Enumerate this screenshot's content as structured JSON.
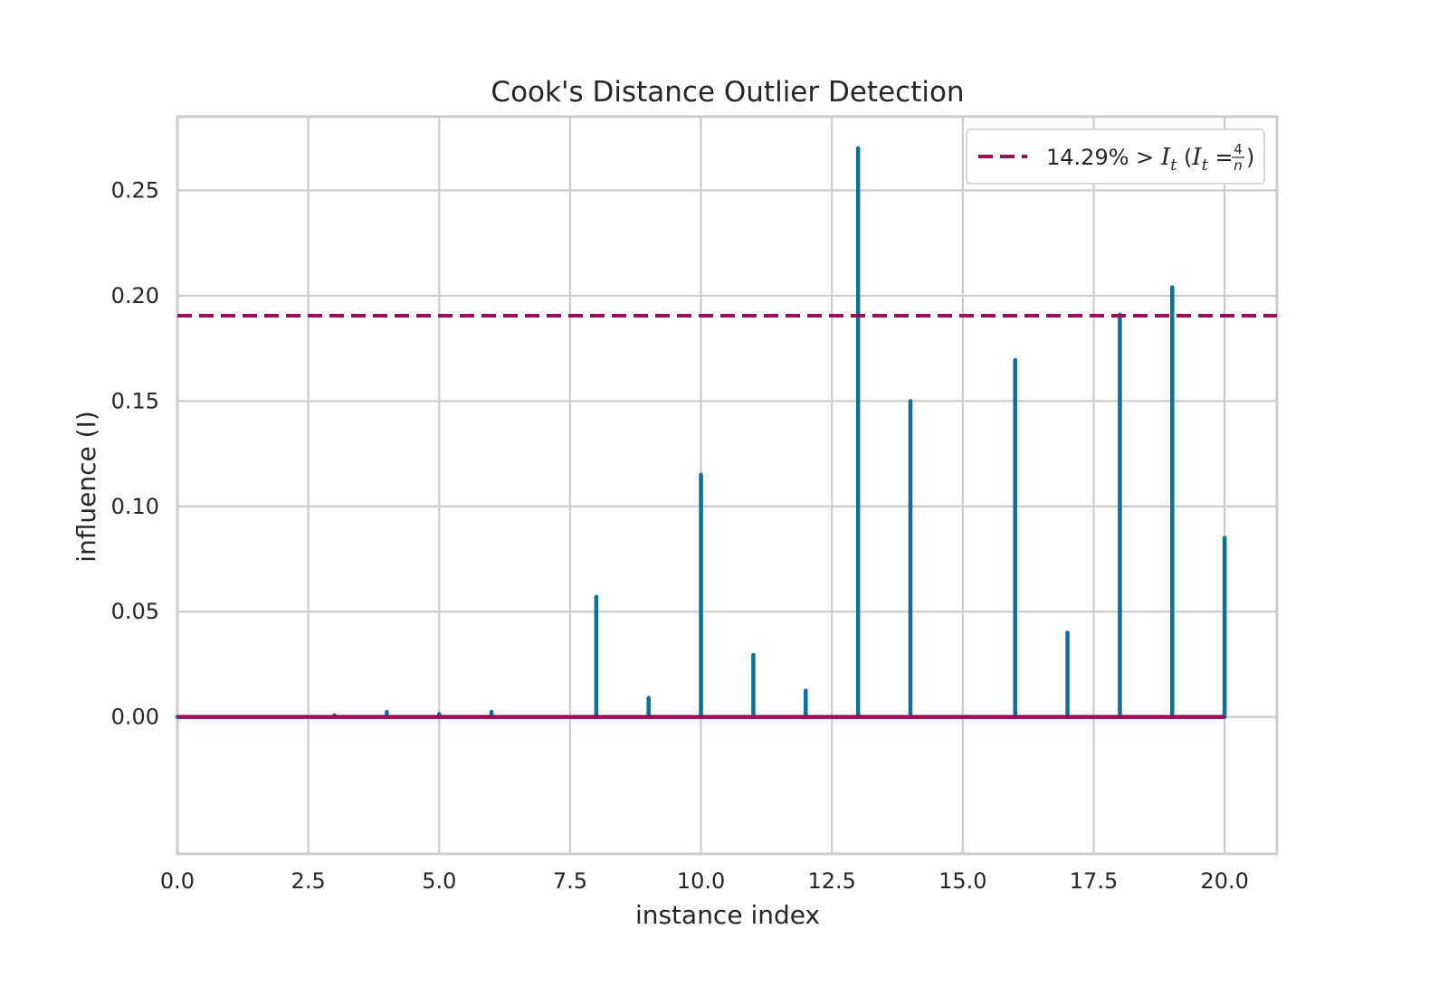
{
  "chart_data": {
    "type": "bar",
    "title": "Cook's Distance Outlier Detection",
    "xlabel": "instance index",
    "ylabel": "influence (I)",
    "xlim": [
      0,
      21
    ],
    "ylim": [
      -0.065,
      0.285
    ],
    "xticks": [
      0,
      2.5,
      5,
      7.5,
      10,
      12.5,
      15,
      17.5,
      20
    ],
    "xtick_labels": [
      "0.0",
      "2.5",
      "5.0",
      "7.5",
      "10.0",
      "12.5",
      "15.0",
      "17.5",
      "20.0"
    ],
    "yticks": [
      0,
      0.05,
      0.1,
      0.15,
      0.2,
      0.25
    ],
    "ytick_labels": [
      "0.00",
      "0.05",
      "0.10",
      "0.15",
      "0.20",
      "0.25"
    ],
    "grid": true,
    "legend_position": "top-right",
    "stems": {
      "color": "#0a6f9b",
      "x": [
        0,
        1,
        2,
        3,
        4,
        5,
        6,
        7,
        8,
        9,
        10,
        11,
        12,
        13,
        14,
        15,
        16,
        17,
        18,
        19,
        20
      ],
      "values": [
        0.0,
        0.0,
        0.0,
        0.0008,
        0.0024,
        0.0014,
        0.0024,
        0.0,
        0.057,
        0.009,
        0.115,
        0.0295,
        0.0125,
        0.27,
        0.15,
        0.0,
        0.1695,
        0.04,
        0.191,
        0.204,
        0.085
      ]
    },
    "baseline": {
      "y": 0,
      "x_range": [
        0,
        20
      ],
      "color": "#9b0b5a"
    },
    "threshold": {
      "y": 0.1905,
      "color": "#9b0b5a",
      "style": "dashed",
      "legend": {
        "percent": "14.29%",
        "gt": " > ",
        "I": "I",
        "sub": "t",
        "open": " (",
        "eq": " = ",
        "close": ")",
        "frac_num": "4",
        "frac_den": "n"
      }
    },
    "colors": {
      "grid": "#cccccc",
      "spine": "#cccccc",
      "text": "#262626"
    }
  }
}
